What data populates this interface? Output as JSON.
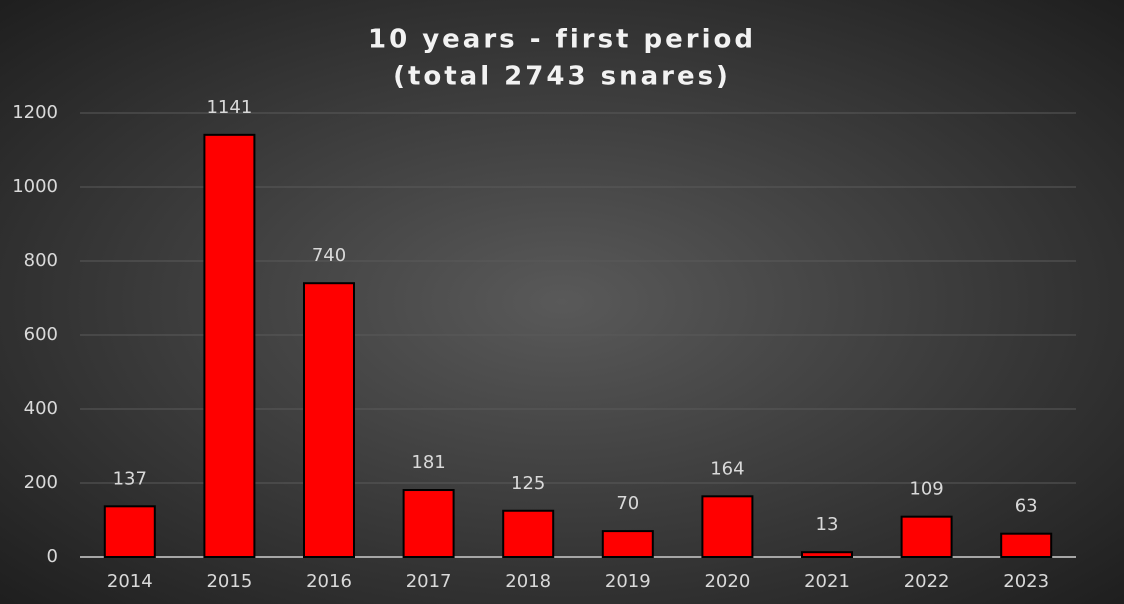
{
  "chart_data": {
    "type": "bar",
    "title": "10 years - first period",
    "subtitle": "(total 2743 snares)",
    "categories": [
      "2014",
      "2015",
      "2016",
      "2017",
      "2018",
      "2019",
      "2020",
      "2021",
      "2022",
      "2023"
    ],
    "values": [
      137,
      1141,
      740,
      181,
      125,
      70,
      164,
      13,
      109,
      63
    ],
    "color": "#ff0000",
    "ylim": [
      0,
      1200
    ],
    "yticks": [
      0,
      200,
      400,
      600,
      800,
      1000,
      1200
    ],
    "grid": true
  }
}
